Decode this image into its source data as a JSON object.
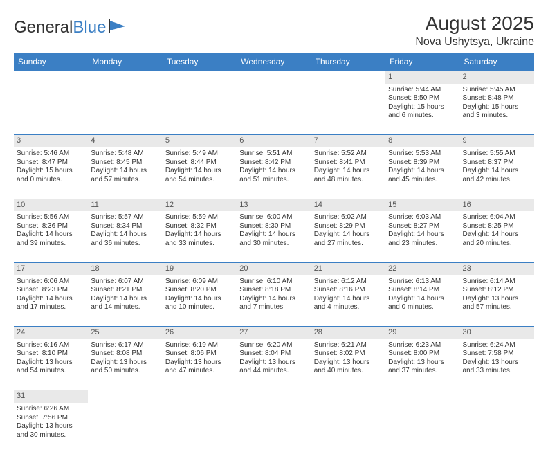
{
  "logo": {
    "text1": "General",
    "text2": "Blue"
  },
  "title": "August 2025",
  "location": "Nova Ushytsya, Ukraine",
  "colors": {
    "header_bg": "#3b7fc4",
    "header_text": "#ffffff",
    "daynum_bg": "#e9e9e9",
    "border": "#3b7fc4",
    "text": "#333333"
  },
  "weekdays": [
    "Sunday",
    "Monday",
    "Tuesday",
    "Wednesday",
    "Thursday",
    "Friday",
    "Saturday"
  ],
  "weeks": [
    [
      null,
      null,
      null,
      null,
      null,
      {
        "n": "1",
        "sr": "Sunrise: 5:44 AM",
        "ss": "Sunset: 8:50 PM",
        "d1": "Daylight: 15 hours",
        "d2": "and 6 minutes."
      },
      {
        "n": "2",
        "sr": "Sunrise: 5:45 AM",
        "ss": "Sunset: 8:48 PM",
        "d1": "Daylight: 15 hours",
        "d2": "and 3 minutes."
      }
    ],
    [
      {
        "n": "3",
        "sr": "Sunrise: 5:46 AM",
        "ss": "Sunset: 8:47 PM",
        "d1": "Daylight: 15 hours",
        "d2": "and 0 minutes."
      },
      {
        "n": "4",
        "sr": "Sunrise: 5:48 AM",
        "ss": "Sunset: 8:45 PM",
        "d1": "Daylight: 14 hours",
        "d2": "and 57 minutes."
      },
      {
        "n": "5",
        "sr": "Sunrise: 5:49 AM",
        "ss": "Sunset: 8:44 PM",
        "d1": "Daylight: 14 hours",
        "d2": "and 54 minutes."
      },
      {
        "n": "6",
        "sr": "Sunrise: 5:51 AM",
        "ss": "Sunset: 8:42 PM",
        "d1": "Daylight: 14 hours",
        "d2": "and 51 minutes."
      },
      {
        "n": "7",
        "sr": "Sunrise: 5:52 AM",
        "ss": "Sunset: 8:41 PM",
        "d1": "Daylight: 14 hours",
        "d2": "and 48 minutes."
      },
      {
        "n": "8",
        "sr": "Sunrise: 5:53 AM",
        "ss": "Sunset: 8:39 PM",
        "d1": "Daylight: 14 hours",
        "d2": "and 45 minutes."
      },
      {
        "n": "9",
        "sr": "Sunrise: 5:55 AM",
        "ss": "Sunset: 8:37 PM",
        "d1": "Daylight: 14 hours",
        "d2": "and 42 minutes."
      }
    ],
    [
      {
        "n": "10",
        "sr": "Sunrise: 5:56 AM",
        "ss": "Sunset: 8:36 PM",
        "d1": "Daylight: 14 hours",
        "d2": "and 39 minutes."
      },
      {
        "n": "11",
        "sr": "Sunrise: 5:57 AM",
        "ss": "Sunset: 8:34 PM",
        "d1": "Daylight: 14 hours",
        "d2": "and 36 minutes."
      },
      {
        "n": "12",
        "sr": "Sunrise: 5:59 AM",
        "ss": "Sunset: 8:32 PM",
        "d1": "Daylight: 14 hours",
        "d2": "and 33 minutes."
      },
      {
        "n": "13",
        "sr": "Sunrise: 6:00 AM",
        "ss": "Sunset: 8:30 PM",
        "d1": "Daylight: 14 hours",
        "d2": "and 30 minutes."
      },
      {
        "n": "14",
        "sr": "Sunrise: 6:02 AM",
        "ss": "Sunset: 8:29 PM",
        "d1": "Daylight: 14 hours",
        "d2": "and 27 minutes."
      },
      {
        "n": "15",
        "sr": "Sunrise: 6:03 AM",
        "ss": "Sunset: 8:27 PM",
        "d1": "Daylight: 14 hours",
        "d2": "and 23 minutes."
      },
      {
        "n": "16",
        "sr": "Sunrise: 6:04 AM",
        "ss": "Sunset: 8:25 PM",
        "d1": "Daylight: 14 hours",
        "d2": "and 20 minutes."
      }
    ],
    [
      {
        "n": "17",
        "sr": "Sunrise: 6:06 AM",
        "ss": "Sunset: 8:23 PM",
        "d1": "Daylight: 14 hours",
        "d2": "and 17 minutes."
      },
      {
        "n": "18",
        "sr": "Sunrise: 6:07 AM",
        "ss": "Sunset: 8:21 PM",
        "d1": "Daylight: 14 hours",
        "d2": "and 14 minutes."
      },
      {
        "n": "19",
        "sr": "Sunrise: 6:09 AM",
        "ss": "Sunset: 8:20 PM",
        "d1": "Daylight: 14 hours",
        "d2": "and 10 minutes."
      },
      {
        "n": "20",
        "sr": "Sunrise: 6:10 AM",
        "ss": "Sunset: 8:18 PM",
        "d1": "Daylight: 14 hours",
        "d2": "and 7 minutes."
      },
      {
        "n": "21",
        "sr": "Sunrise: 6:12 AM",
        "ss": "Sunset: 8:16 PM",
        "d1": "Daylight: 14 hours",
        "d2": "and 4 minutes."
      },
      {
        "n": "22",
        "sr": "Sunrise: 6:13 AM",
        "ss": "Sunset: 8:14 PM",
        "d1": "Daylight: 14 hours",
        "d2": "and 0 minutes."
      },
      {
        "n": "23",
        "sr": "Sunrise: 6:14 AM",
        "ss": "Sunset: 8:12 PM",
        "d1": "Daylight: 13 hours",
        "d2": "and 57 minutes."
      }
    ],
    [
      {
        "n": "24",
        "sr": "Sunrise: 6:16 AM",
        "ss": "Sunset: 8:10 PM",
        "d1": "Daylight: 13 hours",
        "d2": "and 54 minutes."
      },
      {
        "n": "25",
        "sr": "Sunrise: 6:17 AM",
        "ss": "Sunset: 8:08 PM",
        "d1": "Daylight: 13 hours",
        "d2": "and 50 minutes."
      },
      {
        "n": "26",
        "sr": "Sunrise: 6:19 AM",
        "ss": "Sunset: 8:06 PM",
        "d1": "Daylight: 13 hours",
        "d2": "and 47 minutes."
      },
      {
        "n": "27",
        "sr": "Sunrise: 6:20 AM",
        "ss": "Sunset: 8:04 PM",
        "d1": "Daylight: 13 hours",
        "d2": "and 44 minutes."
      },
      {
        "n": "28",
        "sr": "Sunrise: 6:21 AM",
        "ss": "Sunset: 8:02 PM",
        "d1": "Daylight: 13 hours",
        "d2": "and 40 minutes."
      },
      {
        "n": "29",
        "sr": "Sunrise: 6:23 AM",
        "ss": "Sunset: 8:00 PM",
        "d1": "Daylight: 13 hours",
        "d2": "and 37 minutes."
      },
      {
        "n": "30",
        "sr": "Sunrise: 6:24 AM",
        "ss": "Sunset: 7:58 PM",
        "d1": "Daylight: 13 hours",
        "d2": "and 33 minutes."
      }
    ],
    [
      {
        "n": "31",
        "sr": "Sunrise: 6:26 AM",
        "ss": "Sunset: 7:56 PM",
        "d1": "Daylight: 13 hours",
        "d2": "and 30 minutes."
      },
      null,
      null,
      null,
      null,
      null,
      null
    ]
  ]
}
